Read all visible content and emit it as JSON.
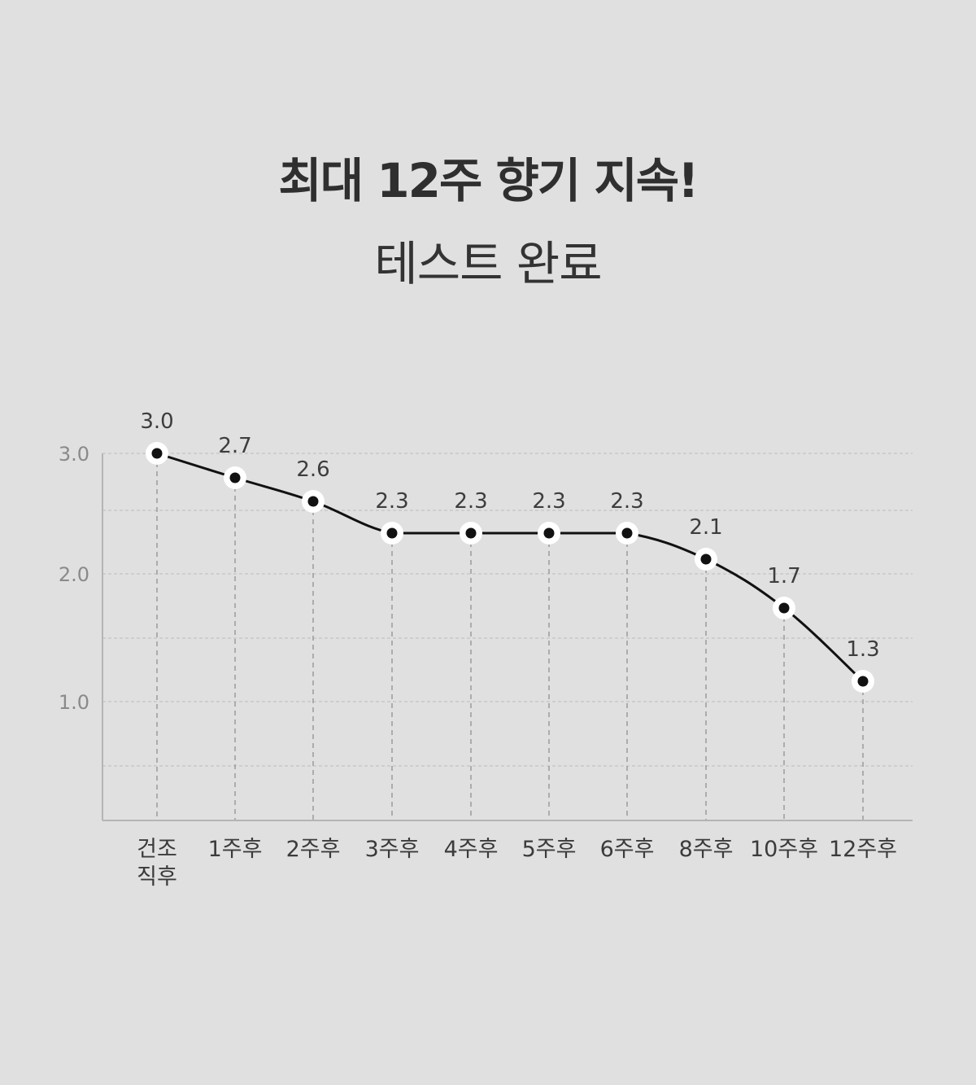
{
  "title": "최대 12주 향기 지속!",
  "subtitle": "테스트 완료",
  "chart_data": {
    "type": "line",
    "categories": [
      "건조\n직후",
      "1주후",
      "2주후",
      "3주후",
      "4주후",
      "5주후",
      "6주후",
      "8주후",
      "10주후",
      "12주후"
    ],
    "series": [
      {
        "values": [
          3.0,
          2.7,
          2.6,
          2.3,
          2.3,
          2.3,
          2.3,
          2.1,
          1.7,
          1.3
        ],
        "labels": [
          "3.0",
          "2.7",
          "2.6",
          "2.3",
          "2.3",
          "2.3",
          "2.3",
          "2.1",
          "1.7",
          "1.3"
        ]
      }
    ],
    "y_ticks": [
      "3.0",
      "2.0",
      "1.0"
    ],
    "grid": true,
    "colors": {
      "line": "#111111",
      "marker_fill": "#111111",
      "marker_ring": "#ffffff",
      "grid": "#bdbdbd"
    }
  }
}
